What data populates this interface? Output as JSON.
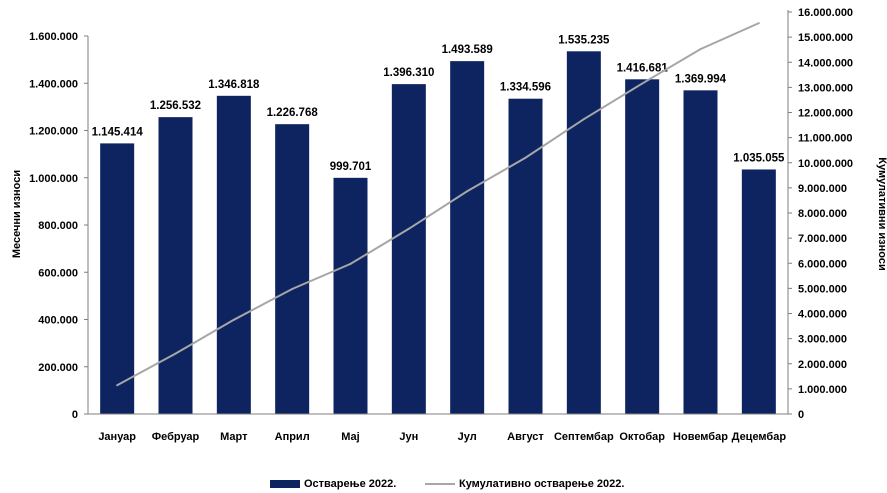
{
  "chart_data": {
    "type": "bar",
    "categories": [
      "Јануар",
      "Фебруар",
      "Март",
      "Април",
      "Мај",
      "Јун",
      "Јул",
      "Август",
      "Септембар",
      "Октобар",
      "Новембар",
      "Децембар"
    ],
    "series": [
      {
        "name": "Остварење 2022.",
        "type": "bar",
        "axis": "left",
        "color": "#0d2461",
        "values": [
          1145414,
          1256532,
          1346818,
          1226768,
          999701,
          1396310,
          1493589,
          1334596,
          1535235,
          1416681,
          1369994,
          1035055
        ],
        "labels": [
          "1.145.414",
          "1.256.532",
          "1.346.818",
          "1.226.768",
          "999.701",
          "1.396.310",
          "1.493.589",
          "1.334.596",
          "1.535.235",
          "1.416.681",
          "1.369.994",
          "1.035.055"
        ]
      },
      {
        "name": "Кумулативно остварење 2022.",
        "type": "line",
        "axis": "right",
        "color": "#a6a6a6",
        "values": [
          1145414,
          2401946,
          3748764,
          4975532,
          5975233,
          7371543,
          8865132,
          10199728,
          11734963,
          13151644,
          14521638,
          15556693
        ]
      }
    ],
    "y_left": {
      "label": "Месечни износи",
      "range": [
        0,
        1600000
      ],
      "ticks": [
        0,
        200000,
        400000,
        600000,
        800000,
        1000000,
        1200000,
        1400000,
        1600000
      ],
      "tick_labels": [
        "0",
        "200.000",
        "400.000",
        "600.000",
        "800.000",
        "1.000.000",
        "1.200.000",
        "1.400.000",
        "1.600.000"
      ]
    },
    "y_right": {
      "label": "Кумулативни износи",
      "range": [
        0,
        16000000
      ],
      "ticks": [
        0,
        1000000,
        2000000,
        3000000,
        4000000,
        5000000,
        6000000,
        7000000,
        8000000,
        9000000,
        10000000,
        11000000,
        12000000,
        13000000,
        14000000,
        15000000,
        16000000
      ],
      "tick_labels": [
        "0",
        "1.000.000",
        "2.000.000",
        "3.000.000",
        "4.000.000",
        "5.000.000",
        "6.000.000",
        "7.000.000",
        "8.000.000",
        "9.000.000",
        "10.000.000",
        "11.000.000",
        "12.000.000",
        "13.000.000",
        "14.000.000",
        "15.000.000",
        "16.000.000"
      ]
    },
    "grid": false,
    "legend_position": "bottom"
  }
}
